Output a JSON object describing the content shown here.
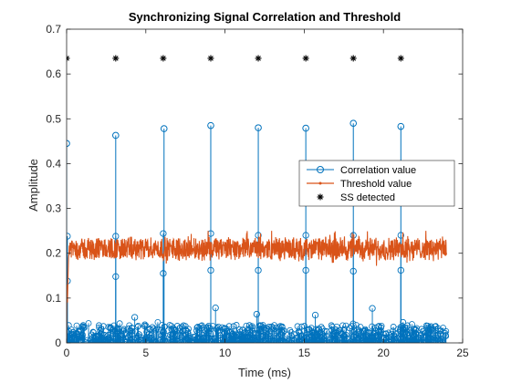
{
  "chart_data": {
    "type": "line",
    "title": "Synchronizing Signal Correlation and Threshold",
    "xlabel": "Time (ms)",
    "ylabel": "Amplitude",
    "xlim": [
      0,
      25
    ],
    "ylim": [
      0,
      0.7
    ],
    "xticks": [
      0,
      5,
      10,
      15,
      20,
      25
    ],
    "yticks": [
      0,
      0.1,
      0.2,
      0.3,
      0.4,
      0.5,
      0.6,
      0.7
    ],
    "grid": false,
    "legend_position": "right-center",
    "colors": {
      "correlation": "#0072BD",
      "threshold": "#D95319",
      "detected": "#000000"
    },
    "series": [
      {
        "name": "Correlation value",
        "style": "stem-circle",
        "baseline_max": 0.04,
        "peaks": [
          {
            "x": 0.0,
            "y": 0.445
          },
          {
            "x": 3.1,
            "y": 0.463
          },
          {
            "x": 6.15,
            "y": 0.478
          },
          {
            "x": 9.1,
            "y": 0.485
          },
          {
            "x": 12.1,
            "y": 0.48
          },
          {
            "x": 15.1,
            "y": 0.479
          },
          {
            "x": 18.1,
            "y": 0.49
          },
          {
            "x": 21.1,
            "y": 0.483
          }
        ],
        "side_points": [
          {
            "x": 0.05,
            "y": 0.238
          },
          {
            "x": 3.1,
            "y": 0.238
          },
          {
            "x": 3.1,
            "y": 0.148
          },
          {
            "x": 6.1,
            "y": 0.244
          },
          {
            "x": 6.1,
            "y": 0.155
          },
          {
            "x": 9.1,
            "y": 0.244
          },
          {
            "x": 9.1,
            "y": 0.162
          },
          {
            "x": 12.1,
            "y": 0.24
          },
          {
            "x": 12.1,
            "y": 0.162
          },
          {
            "x": 15.1,
            "y": 0.24
          },
          {
            "x": 15.1,
            "y": 0.162
          },
          {
            "x": 18.1,
            "y": 0.24
          },
          {
            "x": 18.1,
            "y": 0.16
          },
          {
            "x": 21.1,
            "y": 0.24
          },
          {
            "x": 21.1,
            "y": 0.162
          },
          {
            "x": 0.05,
            "y": 0.138
          },
          {
            "x": 9.4,
            "y": 0.078
          },
          {
            "x": 19.3,
            "y": 0.077
          },
          {
            "x": 12.0,
            "y": 0.064
          },
          {
            "x": 15.7,
            "y": 0.062
          },
          {
            "x": 4.3,
            "y": 0.057
          }
        ]
      },
      {
        "name": "Threshold value",
        "style": "line-dot",
        "level_mean": 0.21,
        "level_range": [
          0.17,
          0.25
        ],
        "x_range": [
          0,
          24
        ]
      },
      {
        "name": "SS detected",
        "style": "asterisk",
        "x": [
          0.0,
          3.1,
          6.1,
          9.1,
          12.1,
          15.1,
          18.1,
          21.1
        ],
        "y": [
          0.635,
          0.635,
          0.635,
          0.635,
          0.635,
          0.635,
          0.635,
          0.635
        ]
      }
    ]
  }
}
